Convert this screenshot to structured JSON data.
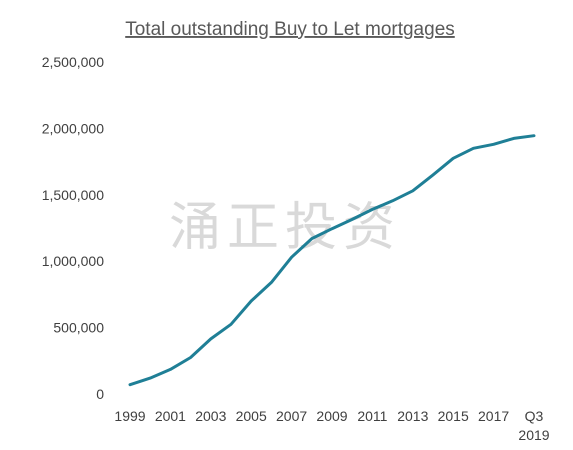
{
  "watermark": "涌正投资",
  "chart_data": {
    "type": "line",
    "title": "Total outstanding Buy to Let mortgages",
    "xlabel": "",
    "ylabel": "",
    "ylim": [
      0,
      2500000
    ],
    "yticks": [
      0,
      500000,
      1000000,
      1500000,
      2000000,
      2500000
    ],
    "ytick_labels": [
      "0",
      "500,000",
      "1,000,000",
      "1,500,000",
      "2,000,000",
      "2,500,000"
    ],
    "xtick_labels": [
      "1999",
      "2001",
      "2003",
      "2005",
      "2007",
      "2009",
      "2011",
      "2013",
      "2015",
      "2017",
      "Q3 2019"
    ],
    "grid": false,
    "legend": "none",
    "color": "#1f7f96",
    "x": [
      "1999",
      "2000",
      "2001",
      "2002",
      "2003",
      "2004",
      "2005",
      "2006",
      "2007",
      "2008",
      "2009",
      "2010",
      "2011",
      "2012",
      "2013",
      "2014",
      "2015",
      "2016",
      "2017",
      "2018",
      "Q3 2019"
    ],
    "values": [
      70000,
      120000,
      185000,
      275000,
      415000,
      525000,
      700000,
      840000,
      1030000,
      1170000,
      1245000,
      1315000,
      1390000,
      1455000,
      1530000,
      1650000,
      1775000,
      1850000,
      1880000,
      1925000,
      1945000
    ]
  }
}
